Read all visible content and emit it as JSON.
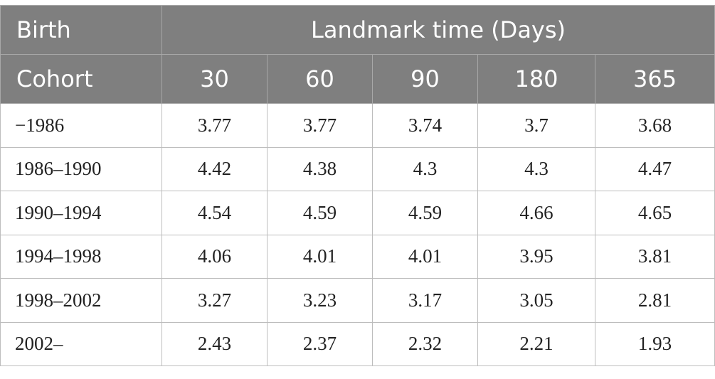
{
  "table": {
    "header_row1": {
      "corner": "Birth",
      "span_label": "Landmark time (Days)"
    },
    "header_row2": {
      "corner": "Cohort",
      "columns": [
        "30",
        "60",
        "90",
        "180",
        "365"
      ]
    },
    "rows": [
      {
        "cohort": "−1986",
        "values": [
          "3.77",
          "3.77",
          "3.74",
          "3.7",
          "3.68"
        ]
      },
      {
        "cohort": "1986–1990",
        "values": [
          "4.42",
          "4.38",
          "4.3",
          "4.3",
          "4.47"
        ]
      },
      {
        "cohort": "1990–1994",
        "values": [
          "4.54",
          "4.59",
          "4.59",
          "4.66",
          "4.65"
        ]
      },
      {
        "cohort": "1994–1998",
        "values": [
          "4.06",
          "4.01",
          "4.01",
          "3.95",
          "3.81"
        ]
      },
      {
        "cohort": "1998–2002",
        "values": [
          "3.27",
          "3.23",
          "3.17",
          "3.05",
          "2.81"
        ]
      },
      {
        "cohort": "2002–",
        "values": [
          "2.43",
          "2.37",
          "2.32",
          "2.21",
          "1.93"
        ]
      }
    ]
  },
  "colors": {
    "header_bg": "#7f7f7f",
    "header_text": "#ffffff",
    "border": "#bdbdbd",
    "body_text": "#222222"
  }
}
